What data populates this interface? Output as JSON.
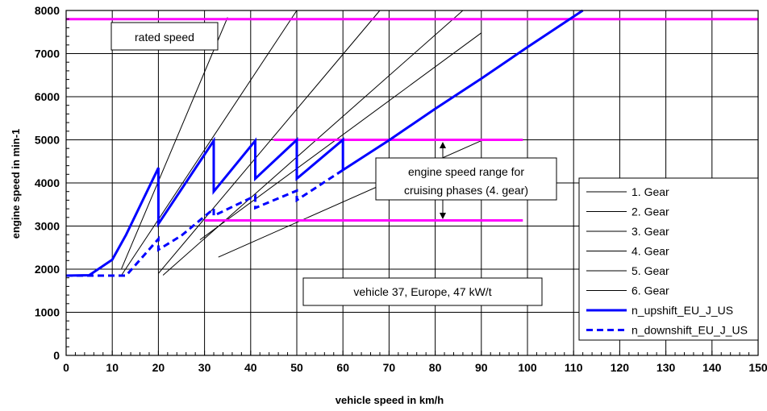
{
  "chart_data": {
    "type": "line",
    "title": "",
    "xlabel": "vehicle speed in km/h",
    "ylabel": "engine speed in min-1",
    "xlim": [
      0,
      150
    ],
    "ylim": [
      0,
      8000
    ],
    "x_ticks": [
      "0",
      "10",
      "20",
      "30",
      "40",
      "50",
      "60",
      "70",
      "80",
      "90",
      "100",
      "110",
      "120",
      "130",
      "140",
      "150"
    ],
    "y_ticks": [
      "0",
      "1000",
      "2000",
      "3000",
      "4000",
      "5000",
      "6000",
      "7000",
      "8000"
    ],
    "grid": true,
    "legend_position": "right",
    "gear_lines": [
      {
        "name": "1. Gear",
        "points": [
          [
            12,
            2010
          ],
          [
            35,
            7840
          ]
        ]
      },
      {
        "name": "2. Gear",
        "points": [
          [
            12,
            1860
          ],
          [
            50,
            8000
          ]
        ]
      },
      {
        "name": "3. Gear",
        "points": [
          [
            20,
            1900
          ],
          [
            68,
            8000
          ]
        ]
      },
      {
        "name": "4. Gear",
        "points": [
          [
            21,
            1860
          ],
          [
            86,
            8000
          ]
        ]
      },
      {
        "name": "5. Gear",
        "points": [
          [
            29,
            2680
          ],
          [
            90,
            7480
          ]
        ]
      },
      {
        "name": "6. Gear",
        "points": [
          [
            33,
            2280
          ],
          [
            90,
            4980
          ]
        ]
      }
    ],
    "series": [
      {
        "name": "n_upshift_EU_J_US",
        "style": "solid",
        "points": [
          [
            0,
            1850
          ],
          [
            5,
            1860
          ],
          [
            10,
            2220
          ],
          [
            13,
            2800
          ],
          [
            20,
            4350
          ],
          [
            20,
            3050
          ],
          [
            32,
            4980
          ],
          [
            32,
            3800
          ],
          [
            41,
            4980
          ],
          [
            41,
            4100
          ],
          [
            50,
            5000
          ],
          [
            50,
            4100
          ],
          [
            60,
            5000
          ],
          [
            60,
            4300
          ],
          [
            70,
            4990
          ],
          [
            80,
            5720
          ],
          [
            90,
            6420
          ],
          [
            100,
            7150
          ],
          [
            112,
            8000
          ]
        ]
      },
      {
        "name": "n_downshift_EU_J_US",
        "style": "dashed",
        "points": [
          [
            0,
            1850
          ],
          [
            13,
            1850
          ],
          [
            20,
            2700
          ],
          [
            20,
            2450
          ],
          [
            25,
            2780
          ],
          [
            32,
            3400
          ],
          [
            32,
            3240
          ],
          [
            41,
            3700
          ],
          [
            41,
            3420
          ],
          [
            50,
            3820
          ],
          [
            50,
            3600
          ],
          [
            60,
            4300
          ]
        ]
      }
    ],
    "reference_lines": [
      {
        "label": "rated speed",
        "y": 7800,
        "x_from": 0,
        "x_to": 150
      },
      {
        "y": 5000,
        "x_from": 45,
        "x_to": 99
      },
      {
        "y": 3130,
        "x_from": 30,
        "x_to": 99
      }
    ],
    "annotations": {
      "rated_speed": "rated speed",
      "cruising_line1": "engine speed range for",
      "cruising_line2": "cruising phases (4. gear)",
      "vehicle": "vehicle 37, Europe, 47 kW/t"
    },
    "colors": {
      "series": "#0000ff",
      "reference": "#ff00ff",
      "gear": "#000000",
      "grid": "#000000"
    }
  }
}
